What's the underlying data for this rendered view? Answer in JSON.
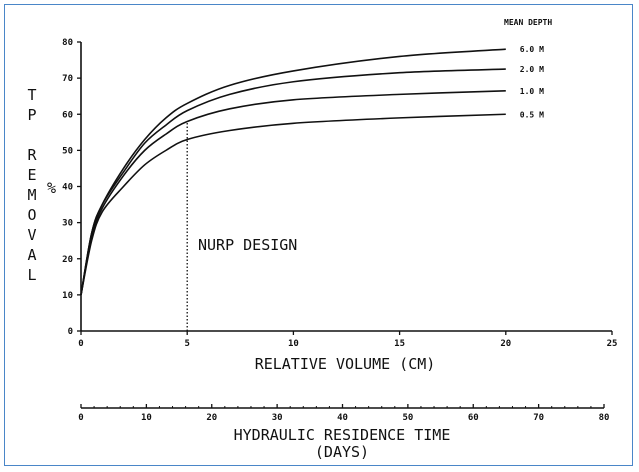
{
  "chart_data": {
    "type": "line",
    "xlabel": "RELATIVE VOLUME (CM)",
    "ylabel_vertical": [
      "T",
      "P",
      "R",
      "E",
      "M",
      "O",
      "V",
      "A",
      "L"
    ],
    "ylabel_unit": "%",
    "xlim": [
      0,
      25
    ],
    "ylim": [
      0,
      80
    ],
    "x_ticks": [
      "0",
      "5",
      "10",
      "15",
      "20",
      "25"
    ],
    "y_ticks": [
      "0",
      "10",
      "20",
      "30",
      "40",
      "50",
      "60",
      "70",
      "80"
    ],
    "legend_title": "MEAN DEPTH",
    "x": [
      0,
      0.5,
      1,
      2,
      3,
      4,
      5,
      7,
      10,
      15,
      20
    ],
    "series": [
      {
        "name": "6.0 M",
        "values": [
          10,
          27,
          35,
          45,
          53,
          59,
          63,
          68,
          72,
          76,
          78
        ]
      },
      {
        "name": "2.0 M",
        "values": [
          10,
          27,
          35,
          44,
          52,
          57,
          61,
          65.5,
          69,
          71.5,
          72.5
        ]
      },
      {
        "name": "1.0 M",
        "values": [
          10,
          26,
          34,
          43,
          50,
          54.5,
          58,
          61.5,
          64,
          65.5,
          66.5
        ]
      },
      {
        "name": "0.5 M",
        "values": [
          10,
          25,
          33,
          40,
          46,
          50,
          53,
          55.5,
          57.5,
          59,
          60
        ]
      }
    ],
    "annotation": {
      "text": "NURP DESIGN",
      "x": 5
    },
    "secondary_axis": {
      "label_line1": "HYDRAULIC RESIDENCE TIME",
      "label_line2": "(DAYS)",
      "range": [
        0,
        80
      ],
      "ticks": [
        "0",
        "10",
        "20",
        "30",
        "40",
        "50",
        "60",
        "70",
        "80"
      ]
    }
  }
}
